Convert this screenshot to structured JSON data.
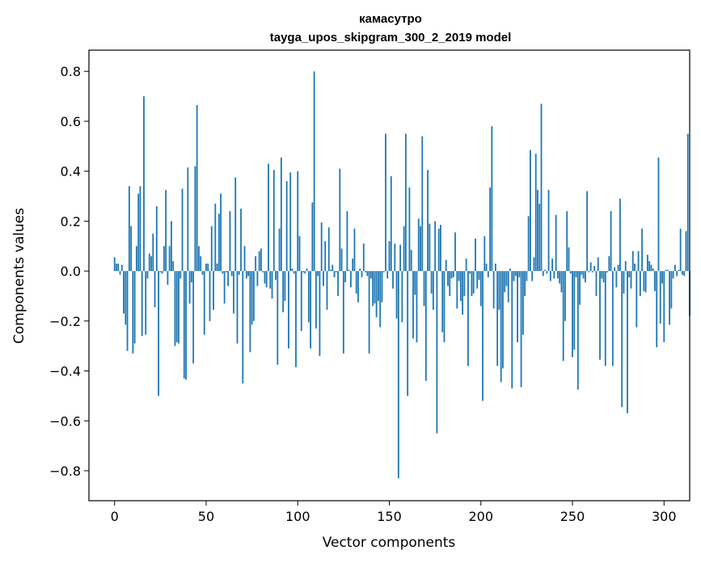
{
  "chart_data": {
    "type": "bar",
    "title": "камасутро",
    "subtitle": "tayga_upos_skipgram_300_2_2019 model",
    "xlabel": "Vector components",
    "ylabel": "Components values",
    "xlim": [
      -14,
      314
    ],
    "ylim": [
      -0.92,
      0.885
    ],
    "xticks": [
      0,
      50,
      100,
      150,
      200,
      250,
      300
    ],
    "yticks": [
      -0.8,
      -0.6,
      -0.4,
      -0.2,
      0.0,
      0.2,
      0.4,
      0.6,
      0.8
    ],
    "ytick_labels": [
      "−0.8",
      "−0.6",
      "−0.4",
      "−0.2",
      "0.0",
      "0.2",
      "0.4",
      "0.6",
      "0.8"
    ],
    "bar_color": "#1f77b4",
    "grid": false,
    "legend": "none",
    "values": [
      0.055,
      0.03,
      0.03,
      -0.015,
      0.025,
      -0.17,
      -0.215,
      -0.32,
      0.34,
      0.18,
      -0.33,
      -0.29,
      0.1,
      0.31,
      0.34,
      -0.26,
      0.7,
      -0.255,
      -0.03,
      0.07,
      0.06,
      0.15,
      -0.145,
      0.26,
      -0.5,
      -0.005,
      -0.01,
      0.1,
      0.325,
      -0.055,
      0.1,
      0.2,
      0.04,
      -0.3,
      -0.285,
      -0.29,
      -0.03,
      0.33,
      -0.43,
      -0.435,
      0.415,
      -0.13,
      -0.045,
      -0.37,
      0.42,
      0.665,
      0.1,
      0.06,
      -0.015,
      -0.255,
      0.03,
      0.03,
      -0.2,
      0.18,
      -0.155,
      0.27,
      0.03,
      0.23,
      0.31,
      -0.01,
      -0.13,
      -0.005,
      -0.06,
      0.24,
      -0.02,
      -0.17,
      0.375,
      -0.29,
      -0.015,
      0.25,
      -0.45,
      0.1,
      -0.03,
      -0.02,
      -0.325,
      -0.215,
      -0.2,
      0.06,
      -0.06,
      0.08,
      0.09,
      -0.005,
      -0.05,
      -0.065,
      0.43,
      -0.07,
      -0.11,
      0.405,
      -0.035,
      -0.375,
      0.17,
      0.455,
      -0.165,
      -0.12,
      0.36,
      -0.31,
      0.395,
      0.01,
      -0.01,
      -0.385,
      0.4,
      0.14,
      -0.24,
      -0.005,
      -0.01,
      0.01,
      -0.205,
      -0.31,
      0.275,
      0.8,
      -0.23,
      -0.02,
      -0.34,
      0.195,
      -0.06,
      0.12,
      -0.155,
      0.175,
      0.005,
      0.025,
      -0.025,
      -0.005,
      -0.1,
      0.41,
      0.09,
      -0.33,
      -0.045,
      0.24,
      0.005,
      -0.065,
      0.05,
      0.17,
      -0.09,
      -0.125,
      0.01,
      -0.025,
      0.11,
      -0.005,
      -0.02,
      -0.33,
      -0.03,
      -0.14,
      -0.13,
      -0.185,
      -0.12,
      -0.225,
      -0.125,
      -0.005,
      0.55,
      -0.03,
      0.12,
      0.38,
      -0.07,
      0.11,
      -0.19,
      -0.83,
      0.105,
      -0.205,
      0.18,
      0.55,
      -0.5,
      0.335,
      0.085,
      -0.27,
      -0.095,
      -0.285,
      0.21,
      0.18,
      0.54,
      -0.14,
      -0.44,
      0.405,
      0.19,
      -0.09,
      -0.155,
      0.2,
      -0.65,
      0.17,
      0.185,
      -0.245,
      -0.285,
      0.045,
      -0.06,
      -0.1,
      -0.03,
      -0.025,
      0.155,
      -0.15,
      -0.04,
      -0.12,
      -0.175,
      -0.1,
      0.05,
      -0.38,
      -0.01,
      -0.1,
      -0.09,
      0.13,
      -0.07,
      -0.035,
      -0.14,
      -0.52,
      0.14,
      0.03,
      -0.025,
      0.335,
      0.58,
      -0.15,
      0.03,
      -0.38,
      -0.155,
      -0.445,
      -0.39,
      -0.085,
      -0.06,
      -0.125,
      0.01,
      -0.47,
      -0.04,
      -0.02,
      -0.285,
      -0.025,
      -0.465,
      -0.255,
      -0.1,
      -0.04,
      0.22,
      0.485,
      -0.04,
      0.055,
      0.47,
      0.325,
      0.27,
      0.67,
      -0.02,
      0.005,
      -0.01,
      0.325,
      -0.04,
      0.05,
      -0.03,
      0.225,
      -0.03,
      -0.05,
      -0.085,
      -0.36,
      -0.2,
      0.24,
      0.095,
      -0.01,
      -0.345,
      -0.315,
      -0.025,
      -0.475,
      -0.135,
      -0.015,
      -0.03,
      -0.045,
      0.32,
      -0.005,
      0.035,
      -0.005,
      0.02,
      -0.1,
      0.055,
      -0.355,
      -0.03,
      -0.045,
      -0.38,
      -0.005,
      0.06,
      0.24,
      -0.38,
      0.015,
      -0.065,
      0.025,
      0.29,
      -0.545,
      -0.09,
      0.04,
      -0.57,
      -0.025,
      -0.07,
      0.08,
      0.03,
      -0.225,
      0.08,
      -0.1,
      0.17,
      -0.08,
      -0.085,
      0.065,
      0.04,
      0.025,
      0.01,
      -0.08,
      -0.305,
      0.455,
      -0.21,
      -0.05,
      -0.285,
      0.005,
      0.005,
      -0.215,
      -0.15,
      -0.03,
      0.025,
      -0.02,
      0.005,
      0.17,
      -0.015,
      -0.02,
      0.16,
      0.55,
      -0.18
    ]
  }
}
